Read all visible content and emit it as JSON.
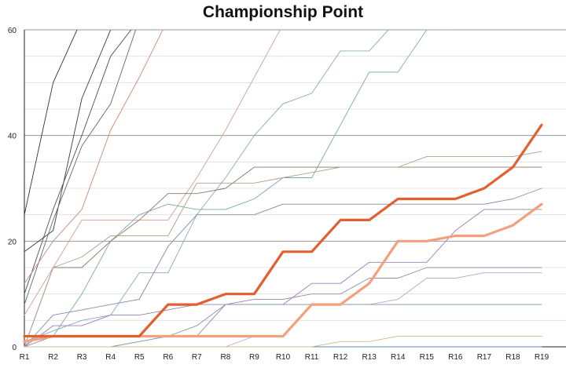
{
  "chart_data": {
    "type": "line",
    "title": "Championship Point",
    "xlabel": "",
    "ylabel": "",
    "ylim": [
      0,
      60
    ],
    "yticks": [
      0,
      20,
      40,
      60
    ],
    "grid": "horizontal",
    "legend": "none",
    "categories": [
      "R1",
      "R2",
      "R3",
      "R4",
      "R5",
      "R6",
      "R7",
      "R8",
      "R9",
      "R10",
      "R11",
      "R12",
      "R13",
      "R14",
      "R15",
      "R16",
      "R17",
      "R18",
      "R19"
    ],
    "series": [
      {
        "color": "#333333",
        "width": 0.9,
        "values": [
          25,
          50,
          62,
          null,
          null,
          null,
          null,
          null,
          null,
          null,
          null,
          null,
          null,
          null,
          null,
          null,
          null,
          null,
          null
        ]
      },
      {
        "color": "#3a3a3a",
        "width": 0.9,
        "values": [
          18,
          22,
          47,
          60,
          62,
          null,
          null,
          null,
          null,
          null,
          null,
          null,
          null,
          null,
          null,
          null,
          null,
          null,
          null
        ]
      },
      {
        "color": "#505050",
        "width": 0.9,
        "values": [
          10,
          26,
          40,
          55,
          62,
          null,
          null,
          null,
          null,
          null,
          null,
          null,
          null,
          null,
          null,
          null,
          null,
          null,
          null
        ]
      },
      {
        "color": "#5a6a7a",
        "width": 0.9,
        "values": [
          8,
          24,
          38,
          46,
          62,
          null,
          null,
          null,
          null,
          null,
          null,
          null,
          null,
          null,
          null,
          null,
          null,
          null,
          null
        ]
      },
      {
        "color": "#c98878",
        "width": 0.9,
        "values": [
          12,
          20,
          26,
          41,
          51,
          62,
          null,
          null,
          null,
          null,
          null,
          null,
          null,
          null,
          null,
          null,
          null,
          null,
          null
        ]
      },
      {
        "color": "#d4a090",
        "width": 0.9,
        "values": [
          6,
          15,
          24,
          24,
          24,
          24,
          32,
          41,
          51,
          61,
          null,
          null,
          null,
          null,
          null,
          null,
          null,
          null,
          null
        ]
      },
      {
        "color": "#88aabb",
        "width": 0.9,
        "values": [
          1,
          3,
          5,
          6,
          14,
          14,
          25,
          32,
          40,
          46,
          48,
          56,
          56,
          62,
          null,
          null,
          null,
          null,
          null
        ]
      },
      {
        "color": "#7aaaa6",
        "width": 0.9,
        "values": [
          0,
          2,
          10,
          20,
          25,
          27,
          26,
          26,
          28,
          32,
          32,
          42,
          52,
          52,
          60,
          60,
          null,
          null,
          null
        ]
      },
      {
        "color": "#887766",
        "width": 0.9,
        "values": [
          0,
          15,
          15,
          20,
          24,
          29,
          29,
          30,
          34,
          34,
          34,
          34,
          34,
          34,
          34,
          34,
          34,
          34,
          34
        ]
      },
      {
        "color": "#aaa088",
        "width": 0.9,
        "values": [
          0,
          15,
          17,
          21,
          21,
          21,
          31,
          31,
          31,
          32,
          33,
          34,
          34,
          34,
          36,
          36,
          36,
          36,
          37
        ]
      },
      {
        "color": "#8888aa",
        "width": 0.9,
        "values": [
          0,
          6,
          7,
          8,
          9,
          19,
          25,
          25,
          25,
          27,
          27,
          27,
          27,
          27,
          27,
          27,
          27,
          28,
          30
        ]
      },
      {
        "color": "#9a7fb2",
        "width": 0.9,
        "values": [
          0,
          4,
          4,
          6,
          6,
          7,
          8,
          8,
          8,
          8,
          12,
          12,
          16,
          16,
          16,
          22,
          26,
          26,
          26
        ]
      },
      {
        "color": "#9988aa",
        "width": 0.9,
        "values": [
          0,
          2,
          2,
          2,
          2,
          2,
          2,
          8,
          9,
          9,
          10,
          10,
          13,
          13,
          15,
          15,
          15,
          15,
          15
        ]
      },
      {
        "color": "#b8a8c8",
        "width": 0.9,
        "values": [
          0,
          0,
          0,
          0,
          0,
          0,
          0,
          0,
          2,
          2,
          8,
          8,
          8,
          9,
          13,
          13,
          14,
          14,
          14
        ]
      },
      {
        "color": "#7799aa",
        "width": 0.9,
        "values": [
          0,
          0,
          0,
          0,
          1,
          2,
          4,
          8,
          8,
          8,
          8,
          8,
          8,
          8,
          8,
          8,
          8,
          8,
          8
        ]
      },
      {
        "color": "#6688aa",
        "width": 0.9,
        "values": [
          0,
          0,
          0,
          0,
          0,
          0,
          0,
          0,
          0,
          0,
          0,
          0,
          0,
          0,
          0,
          0,
          0,
          0,
          0
        ]
      },
      {
        "color": "#c8c090",
        "width": 0.9,
        "values": [
          0,
          0,
          0,
          0,
          0,
          0,
          0,
          0,
          0,
          0,
          0,
          1,
          1,
          2,
          2,
          2,
          2,
          2,
          2
        ]
      },
      {
        "color": "#f2a07e",
        "width": 3.2,
        "values": [
          1,
          2,
          2,
          2,
          2,
          2,
          2,
          2,
          2,
          2,
          8,
          8,
          12,
          20,
          20,
          21,
          21,
          23,
          27
        ]
      },
      {
        "color": "#e06030",
        "width": 3.2,
        "values": [
          2,
          2,
          2,
          2,
          2,
          8,
          8,
          10,
          10,
          18,
          18,
          24,
          24,
          28,
          28,
          28,
          30,
          34,
          42
        ]
      }
    ]
  }
}
